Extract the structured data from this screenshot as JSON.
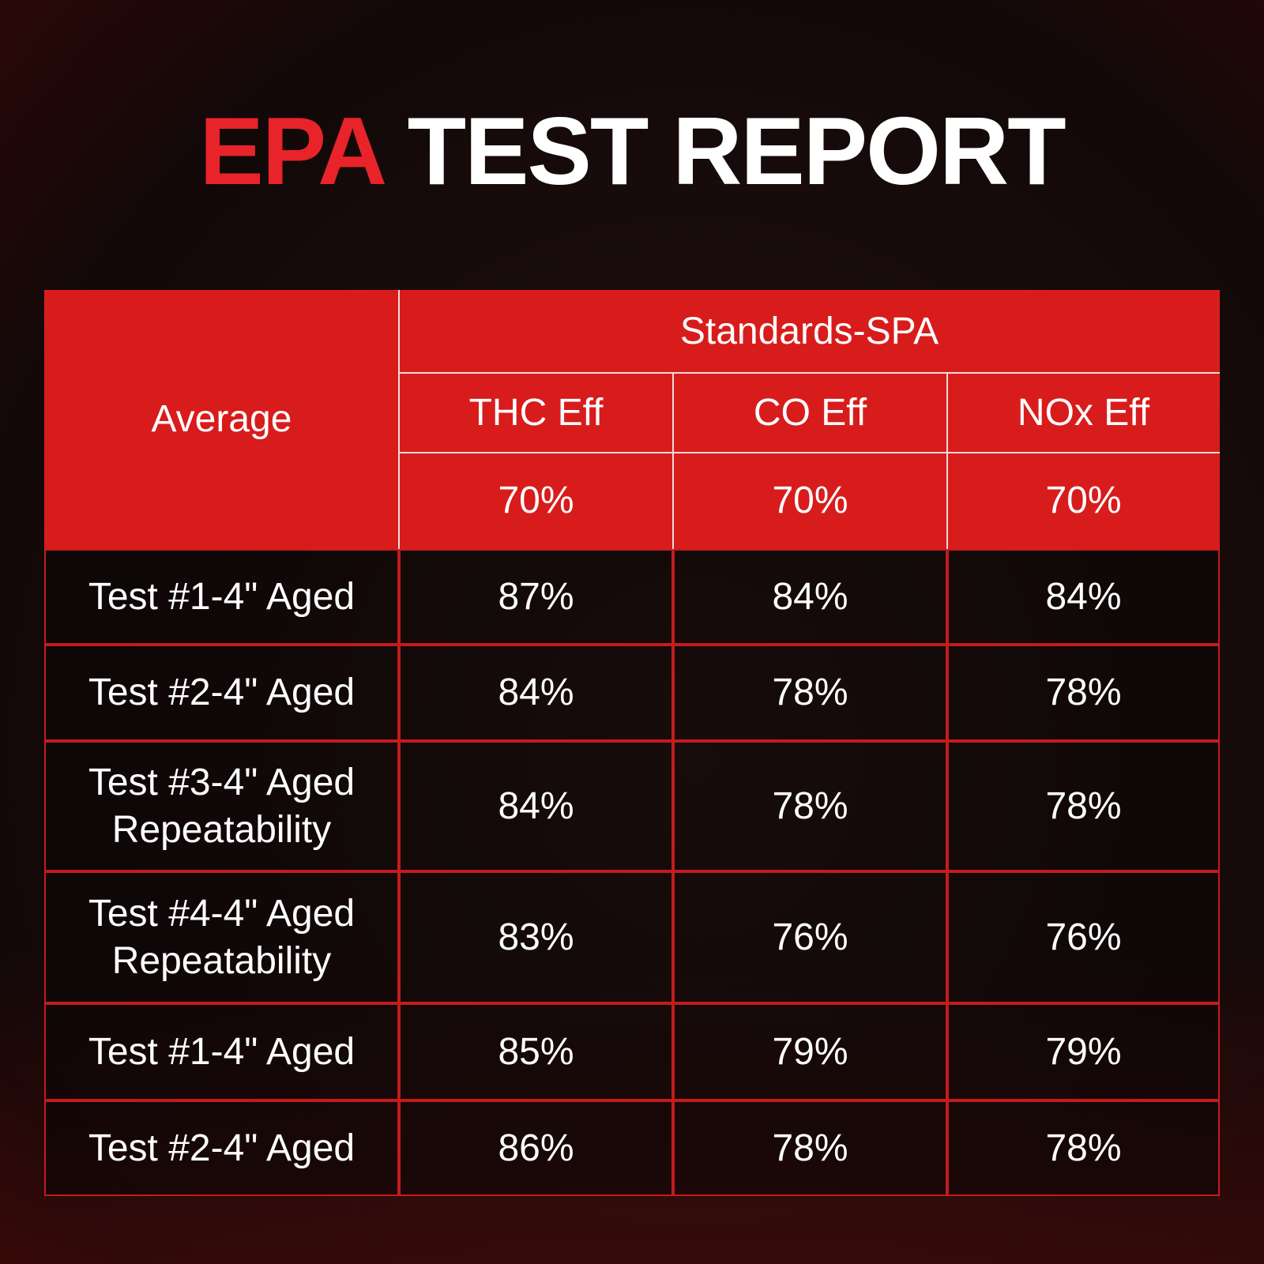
{
  "title": {
    "highlight": "EPA",
    "rest": "TEST REPORT"
  },
  "table": {
    "row_header": "Average",
    "group_header": "Standards-SPA",
    "columns": [
      "THC Eff",
      "CO Eff",
      "NOx Eff"
    ],
    "standards": [
      "70%",
      "70%",
      "70%"
    ],
    "rows": [
      {
        "label": "Test #1-4\" Aged",
        "values": [
          "87%",
          "84%",
          "84%"
        ]
      },
      {
        "label": "Test #2-4\" Aged",
        "values": [
          "84%",
          "78%",
          "78%"
        ]
      },
      {
        "label": "Test #3-4\" Aged Repeatability",
        "values": [
          "84%",
          "78%",
          "78%"
        ]
      },
      {
        "label": "Test #4-4\" Aged Repeatability",
        "values": [
          "83%",
          "76%",
          "76%"
        ]
      },
      {
        "label": "Test #1-4\" Aged",
        "values": [
          "85%",
          "79%",
          "79%"
        ]
      },
      {
        "label": "Test #2-4\" Aged",
        "values": [
          "86%",
          "78%",
          "78%"
        ]
      }
    ]
  },
  "colors": {
    "accent_red": "#d81c1c",
    "title_red": "#e8242a"
  }
}
